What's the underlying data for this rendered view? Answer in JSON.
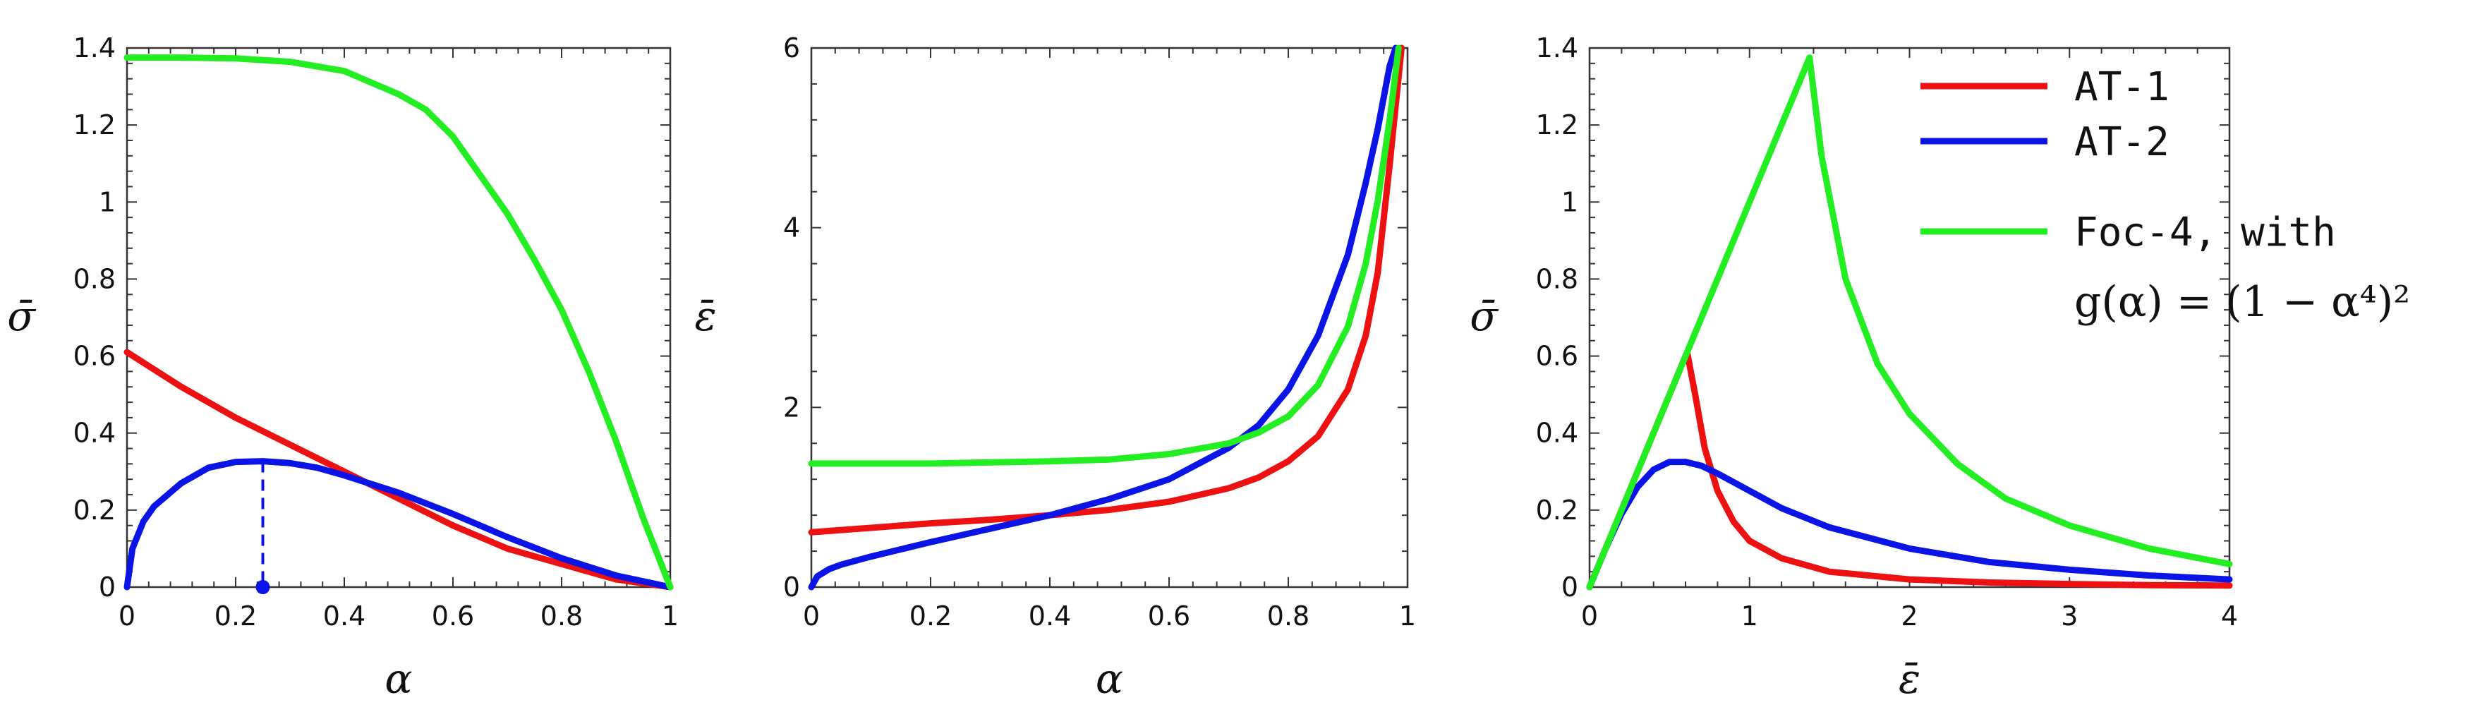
{
  "colors": {
    "at1": "#ee1111",
    "at2": "#0a14e6",
    "foc4": "#22ee22",
    "frame": "#333333"
  },
  "legend": {
    "entries": [
      {
        "label": "AT-1",
        "color": "#ee1111"
      },
      {
        "label": "AT-2",
        "color": "#0a14e6"
      },
      {
        "label": "Foc-4, with",
        "color": "#22ee22"
      }
    ],
    "formula": "g(α) = (1 − α⁴)²"
  },
  "chart_data": [
    {
      "type": "line",
      "xlabel": "α",
      "ylabel": "σ̄",
      "xlim": [
        0,
        1
      ],
      "ylim": [
        0,
        1.4
      ],
      "xticks": [
        "0",
        "0.2",
        "0.4",
        "0.6",
        "0.8",
        "1"
      ],
      "yticks": [
        "0",
        "0.2",
        "0.4",
        "0.6",
        "0.8",
        "1",
        "1.2",
        "1.4"
      ],
      "series": [
        {
          "name": "AT-1",
          "color": "#ee1111",
          "x": [
            0,
            0.1,
            0.2,
            0.3,
            0.4,
            0.5,
            0.6,
            0.7,
            0.8,
            0.9,
            1.0
          ],
          "y": [
            0.61,
            0.52,
            0.44,
            0.37,
            0.3,
            0.23,
            0.16,
            0.1,
            0.06,
            0.02,
            0.0
          ]
        },
        {
          "name": "AT-2",
          "color": "#0a14e6",
          "x": [
            0,
            0.01,
            0.03,
            0.05,
            0.1,
            0.15,
            0.2,
            0.25,
            0.3,
            0.35,
            0.4,
            0.5,
            0.6,
            0.7,
            0.8,
            0.9,
            1.0
          ],
          "y": [
            0,
            0.1,
            0.17,
            0.21,
            0.27,
            0.31,
            0.325,
            0.327,
            0.322,
            0.31,
            0.29,
            0.245,
            0.19,
            0.13,
            0.075,
            0.03,
            0.0
          ]
        },
        {
          "name": "Foc-4",
          "color": "#22ee22",
          "x": [
            0,
            0.1,
            0.2,
            0.3,
            0.4,
            0.5,
            0.55,
            0.6,
            0.65,
            0.7,
            0.75,
            0.8,
            0.85,
            0.9,
            0.95,
            1.0
          ],
          "y": [
            1.375,
            1.375,
            1.373,
            1.364,
            1.34,
            1.28,
            1.24,
            1.17,
            1.07,
            0.97,
            0.85,
            0.72,
            0.56,
            0.38,
            0.18,
            0.0
          ]
        }
      ],
      "marker": {
        "x": 0.25,
        "y": 0.327,
        "color": "#0a14e6"
      }
    },
    {
      "type": "line",
      "xlabel": "α",
      "ylabel": "ε̄",
      "xlim": [
        0,
        1
      ],
      "ylim": [
        0,
        6
      ],
      "xticks": [
        "0",
        "0.2",
        "0.4",
        "0.6",
        "0.8",
        "1"
      ],
      "yticks": [
        "0",
        "2",
        "4",
        "6"
      ],
      "series": [
        {
          "name": "AT-1",
          "color": "#ee1111",
          "x": [
            0,
            0.1,
            0.2,
            0.3,
            0.4,
            0.5,
            0.6,
            0.7,
            0.75,
            0.8,
            0.85,
            0.9,
            0.93,
            0.95,
            0.97,
            0.99
          ],
          "y": [
            0.61,
            0.66,
            0.71,
            0.75,
            0.8,
            0.86,
            0.95,
            1.1,
            1.22,
            1.4,
            1.68,
            2.2,
            2.8,
            3.5,
            4.7,
            6.0
          ]
        },
        {
          "name": "AT-2",
          "color": "#0a14e6",
          "x": [
            0,
            0.01,
            0.03,
            0.05,
            0.1,
            0.2,
            0.3,
            0.4,
            0.5,
            0.6,
            0.7,
            0.75,
            0.8,
            0.85,
            0.9,
            0.93,
            0.95,
            0.97,
            0.98
          ],
          "y": [
            0,
            0.12,
            0.2,
            0.25,
            0.34,
            0.5,
            0.65,
            0.8,
            0.98,
            1.2,
            1.55,
            1.8,
            2.2,
            2.8,
            3.7,
            4.5,
            5.1,
            5.8,
            6.0
          ]
        },
        {
          "name": "Foc-4",
          "color": "#22ee22",
          "x": [
            0,
            0.2,
            0.4,
            0.5,
            0.6,
            0.7,
            0.75,
            0.8,
            0.85,
            0.9,
            0.93,
            0.95,
            0.97,
            0.985
          ],
          "y": [
            1.375,
            1.375,
            1.4,
            1.42,
            1.48,
            1.6,
            1.72,
            1.9,
            2.25,
            2.9,
            3.6,
            4.3,
            5.2,
            6.0
          ]
        }
      ]
    },
    {
      "type": "line",
      "xlabel": "ε̄",
      "ylabel": "σ̄",
      "xlim": [
        0,
        4
      ],
      "ylim": [
        0,
        1.4
      ],
      "xticks": [
        "0",
        "1",
        "2",
        "3",
        "4"
      ],
      "yticks": [
        "0",
        "0.2",
        "0.4",
        "0.6",
        "0.8",
        "1",
        "1.2",
        "1.4"
      ],
      "series": [
        {
          "name": "AT-1",
          "color": "#ee1111",
          "x": [
            0,
            0.61,
            0.66,
            0.72,
            0.8,
            0.9,
            1.0,
            1.2,
            1.5,
            2.0,
            2.5,
            3.0,
            3.5,
            4.0
          ],
          "y": [
            0,
            0.61,
            0.5,
            0.36,
            0.25,
            0.17,
            0.12,
            0.075,
            0.04,
            0.02,
            0.012,
            0.008,
            0.005,
            0.004
          ]
        },
        {
          "name": "AT-2",
          "color": "#0a14e6",
          "x": [
            0,
            0.1,
            0.2,
            0.3,
            0.4,
            0.5,
            0.6,
            0.7,
            0.8,
            1.0,
            1.2,
            1.5,
            2.0,
            2.5,
            3.0,
            3.5,
            4.0
          ],
          "y": [
            0,
            0.1,
            0.19,
            0.26,
            0.305,
            0.325,
            0.325,
            0.315,
            0.295,
            0.25,
            0.205,
            0.155,
            0.1,
            0.065,
            0.045,
            0.03,
            0.02
          ]
        },
        {
          "name": "Foc-4",
          "color": "#22ee22",
          "x": [
            0,
            0.61,
            1.375,
            1.45,
            1.6,
            1.8,
            2.0,
            2.3,
            2.6,
            3.0,
            3.5,
            4.0
          ],
          "y": [
            0,
            0.61,
            1.375,
            1.12,
            0.8,
            0.58,
            0.45,
            0.32,
            0.23,
            0.16,
            0.1,
            0.06
          ]
        }
      ]
    }
  ]
}
